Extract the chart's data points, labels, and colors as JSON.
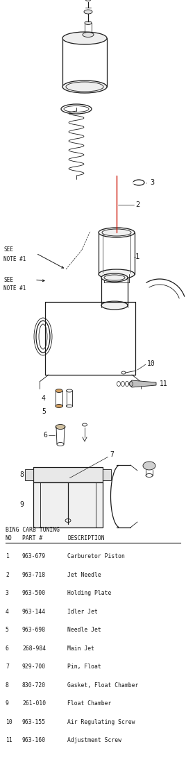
{
  "title": "BING CARB TUNING",
  "bg_color": "#ffffff",
  "text_color": "#1a1a1a",
  "parts": [
    {
      "no": "1",
      "part": "963-679",
      "desc": "Carburetor Piston"
    },
    {
      "no": "2",
      "part": "963-718",
      "desc": "Jet Needle"
    },
    {
      "no": "3",
      "part": "963-500",
      "desc": "Holding Plate"
    },
    {
      "no": "4",
      "part": "963-144",
      "desc": "Idler Jet"
    },
    {
      "no": "5",
      "part": "963-698",
      "desc": "Needle Jet"
    },
    {
      "no": "6",
      "part": "268-984",
      "desc": "Main Jet"
    },
    {
      "no": "7",
      "part": "929-700",
      "desc": "Pin, Float"
    },
    {
      "no": "8",
      "part": "830-720",
      "desc": "Gasket, Float Chamber"
    },
    {
      "no": "9",
      "part": "261-010",
      "desc": "Float Chamber"
    },
    {
      "no": "10",
      "part": "963-155",
      "desc": "Air Regulating Screw"
    },
    {
      "no": "11",
      "part": "963-160",
      "desc": "Adjustment Screw"
    }
  ],
  "figsize": [
    2.68,
    10.95
  ],
  "dpi": 100,
  "lc": "#1a1a1a",
  "table_fontsize": 5.8,
  "label_fontsize": 7.0
}
